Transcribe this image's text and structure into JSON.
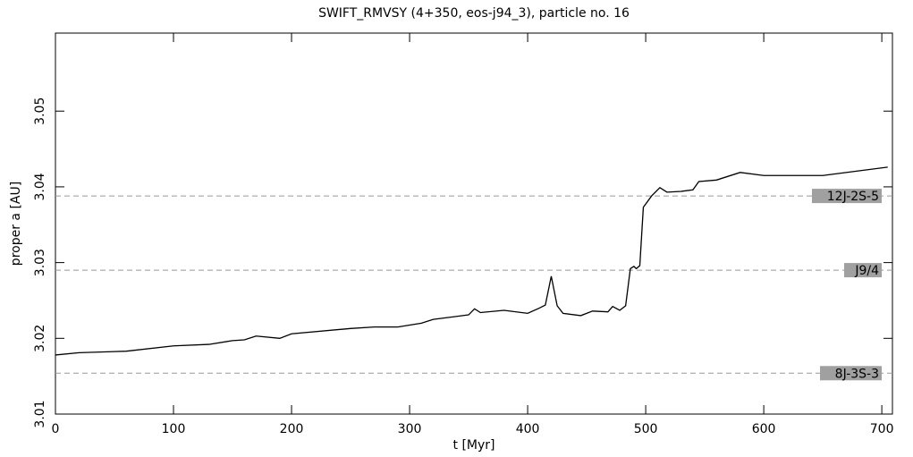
{
  "chart_data": {
    "type": "line",
    "title": "SWIFT_RMVSY (4+350, eos-j94_3), particle no. 16",
    "x_label": "t [Myr]",
    "y_label": "proper a [AU]",
    "x": [
      0,
      20,
      60,
      100,
      130,
      150,
      160,
      170,
      190,
      200,
      250,
      270,
      290,
      310,
      320,
      350,
      355,
      360,
      380,
      400,
      410,
      415,
      420,
      425,
      430,
      445,
      455,
      468,
      472,
      478,
      483,
      487,
      490,
      492,
      495,
      498,
      505,
      512,
      518,
      530,
      540,
      545,
      560,
      580,
      600,
      650,
      680,
      705
    ],
    "series": [
      {
        "color": "#000000",
        "values": [
          3.0178,
          3.0181,
          3.0183,
          3.019,
          3.0192,
          3.0197,
          3.0198,
          3.0203,
          3.02,
          3.0206,
          3.0213,
          3.0215,
          3.0215,
          3.022,
          3.0225,
          3.0231,
          3.0239,
          3.0234,
          3.0237,
          3.0233,
          3.024,
          3.0244,
          3.0282,
          3.0243,
          3.0233,
          3.023,
          3.0236,
          3.0235,
          3.0242,
          3.0237,
          3.0243,
          3.0292,
          3.0295,
          3.0292,
          3.0296,
          3.0373,
          3.0388,
          3.0399,
          3.0393,
          3.0394,
          3.0396,
          3.0407,
          3.0409,
          3.0419,
          3.0415,
          3.0415,
          3.0421,
          3.0426
        ]
      }
    ],
    "resonances": [
      {
        "name": "12J-2S-5",
        "value": 3.0388
      },
      {
        "name": "J9/4",
        "value": 3.029
      },
      {
        "name": "8J-3S-3",
        "value": 3.0154
      }
    ],
    "xlim": [
      0,
      709
    ],
    "xticks": [
      0,
      100,
      200,
      300,
      400,
      500,
      600,
      700
    ],
    "ylim": [
      3.01,
      3.0603
    ],
    "yticks": [
      3.01,
      3.02,
      3.03,
      3.04,
      3.05
    ]
  }
}
